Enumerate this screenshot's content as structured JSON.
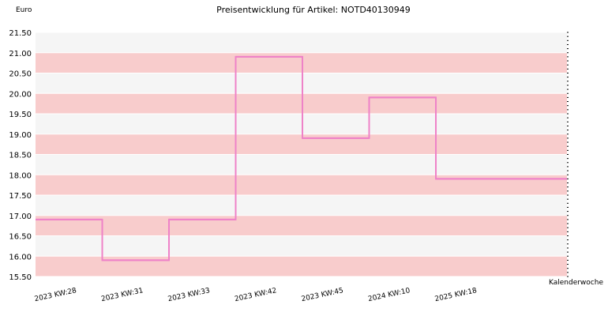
{
  "chart_data": {
    "type": "line",
    "title": "Preisentwicklung für Artikel: NOTD40130949",
    "ylabel": "Euro",
    "xlabel": "Kalenderwoche",
    "step": true,
    "ylim": [
      15.5,
      21.5
    ],
    "ytick_step": 0.5,
    "yticks": [
      "15.50",
      "16.00",
      "16.50",
      "17.00",
      "17.50",
      "18.00",
      "18.50",
      "19.00",
      "19.50",
      "20.00",
      "20.50",
      "21.00",
      "21.50"
    ],
    "categories": [
      "2023 KW:28",
      "2023 KW:31",
      "2023 KW:33",
      "2023 KW:42",
      "2023 KW:45",
      "2024 KW:10",
      "2025 KW:18"
    ],
    "series": [
      {
        "values": [
          16.9,
          15.9,
          16.9,
          20.9,
          18.9,
          19.9,
          17.9
        ]
      }
    ],
    "colors": {
      "line": "#ee82c8",
      "band_a": "#f8cccc",
      "band_b": "#f5f5f5",
      "grid": "#ffffff"
    },
    "grid": true
  }
}
